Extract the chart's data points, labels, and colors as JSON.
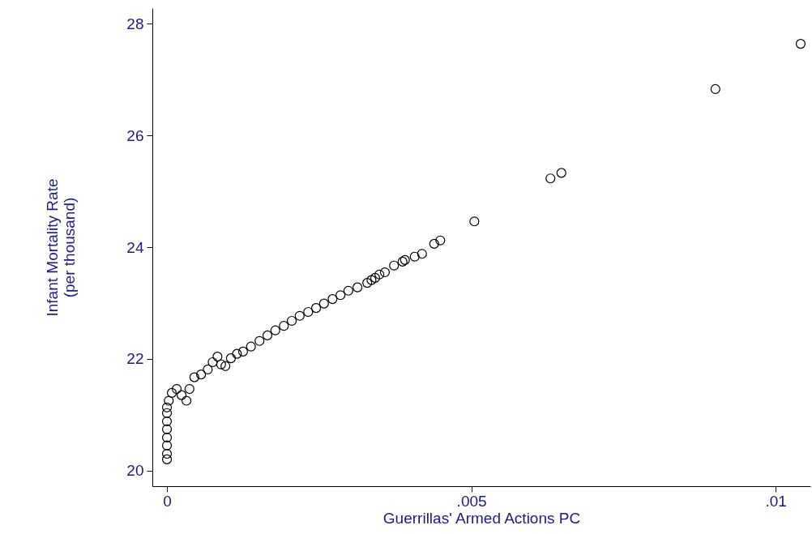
{
  "chart_data": {
    "type": "scatter",
    "xlabel": "Guerrillas' Armed Actions PC",
    "ylabel": "Infant Mortality Rate\n(per thousand)",
    "x": [
      0,
      0,
      0,
      0,
      0,
      0,
      0,
      0,
      3e-05,
      8e-05,
      0.00016,
      0.00024,
      0.00032,
      0.00037,
      0.00045,
      0.00056,
      0.00067,
      0.00075,
      0.00083,
      0.00089,
      0.00096,
      0.00105,
      0.00115,
      0.00125,
      0.00138,
      0.00152,
      0.00165,
      0.00178,
      0.00192,
      0.00205,
      0.00218,
      0.00232,
      0.00245,
      0.00258,
      0.00272,
      0.00285,
      0.00298,
      0.00313,
      0.00329,
      0.00336,
      0.00342,
      0.00349,
      0.00358,
      0.00373,
      0.00387,
      0.00391,
      0.00407,
      0.00419,
      0.00439,
      0.00449,
      0.00505,
      0.0063,
      0.00648,
      0.00901,
      0.01041
    ],
    "series": [
      {
        "color": "#000000",
        "values": [
          20.2,
          20.3,
          20.45,
          20.59,
          20.74,
          20.88,
          21.03,
          21.13,
          21.25,
          21.39,
          21.46,
          21.35,
          21.25,
          21.46,
          21.67,
          21.72,
          21.81,
          21.94,
          22.04,
          21.9,
          21.87,
          22.01,
          22.09,
          22.13,
          22.22,
          22.32,
          22.42,
          22.51,
          22.59,
          22.68,
          22.77,
          22.84,
          22.91,
          22.99,
          23.07,
          23.14,
          23.22,
          23.28,
          23.36,
          23.41,
          23.45,
          23.51,
          23.55,
          23.67,
          23.74,
          23.77,
          23.83,
          23.88,
          24.06,
          24.12,
          24.46,
          25.23,
          25.33,
          26.83,
          27.64
        ]
      }
    ],
    "xlim": [
      -0.00024,
      0.01057
    ],
    "ylim": [
      19.72,
      28.28
    ],
    "xticks": [
      {
        "value": 0,
        "label": "0"
      },
      {
        "value": 0.005,
        "label": ".005"
      },
      {
        "value": 0.01,
        "label": ".01"
      }
    ],
    "yticks": [
      20,
      22,
      24,
      26,
      28
    ],
    "marker": "circle",
    "grid": false
  }
}
